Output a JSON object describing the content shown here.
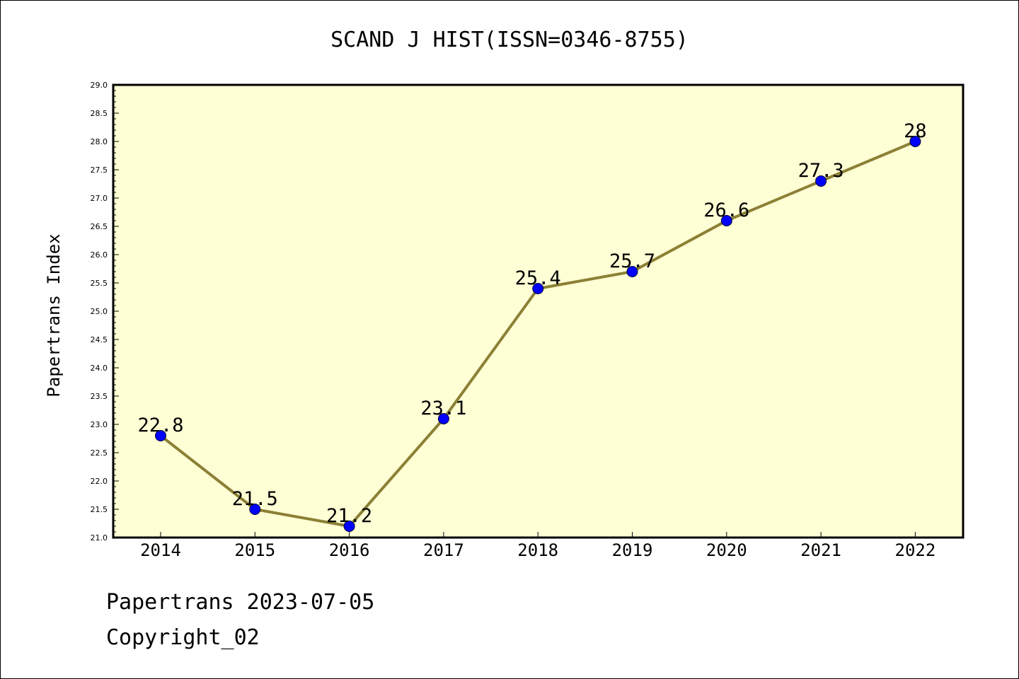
{
  "chart_data": {
    "type": "line",
    "title": "SCAND J HIST(ISSN=0346-8755)",
    "xlabel": "",
    "ylabel": "Papertrans Index",
    "categories": [
      "2014",
      "2015",
      "2016",
      "2017",
      "2018",
      "2019",
      "2020",
      "2021",
      "2022"
    ],
    "series": [
      {
        "values": [
          22.8,
          21.5,
          21.2,
          23.1,
          25.4,
          25.7,
          26.6,
          27.3,
          28.0
        ],
        "labels": [
          "22.8",
          "21.5",
          "21.2",
          "23.1",
          "25.4",
          "25.7",
          "26.6",
          "27.3",
          "28"
        ]
      }
    ],
    "ylim": [
      21.0,
      29.0
    ],
    "yticks": [
      "21.0",
      "21.5",
      "22.0",
      "22.5",
      "23.0",
      "23.5",
      "24.0",
      "24.5",
      "25.0",
      "25.5",
      "26.0",
      "26.5",
      "27.0",
      "27.5",
      "28.0",
      "28.5",
      "29.0"
    ],
    "grid": false,
    "colors": {
      "plot_background": "#ffffd5",
      "line": "#8b8035",
      "marker": "#0000ff"
    }
  },
  "footer": {
    "line1": "Papertrans 2023-07-05",
    "line2": "Copyright_02"
  }
}
